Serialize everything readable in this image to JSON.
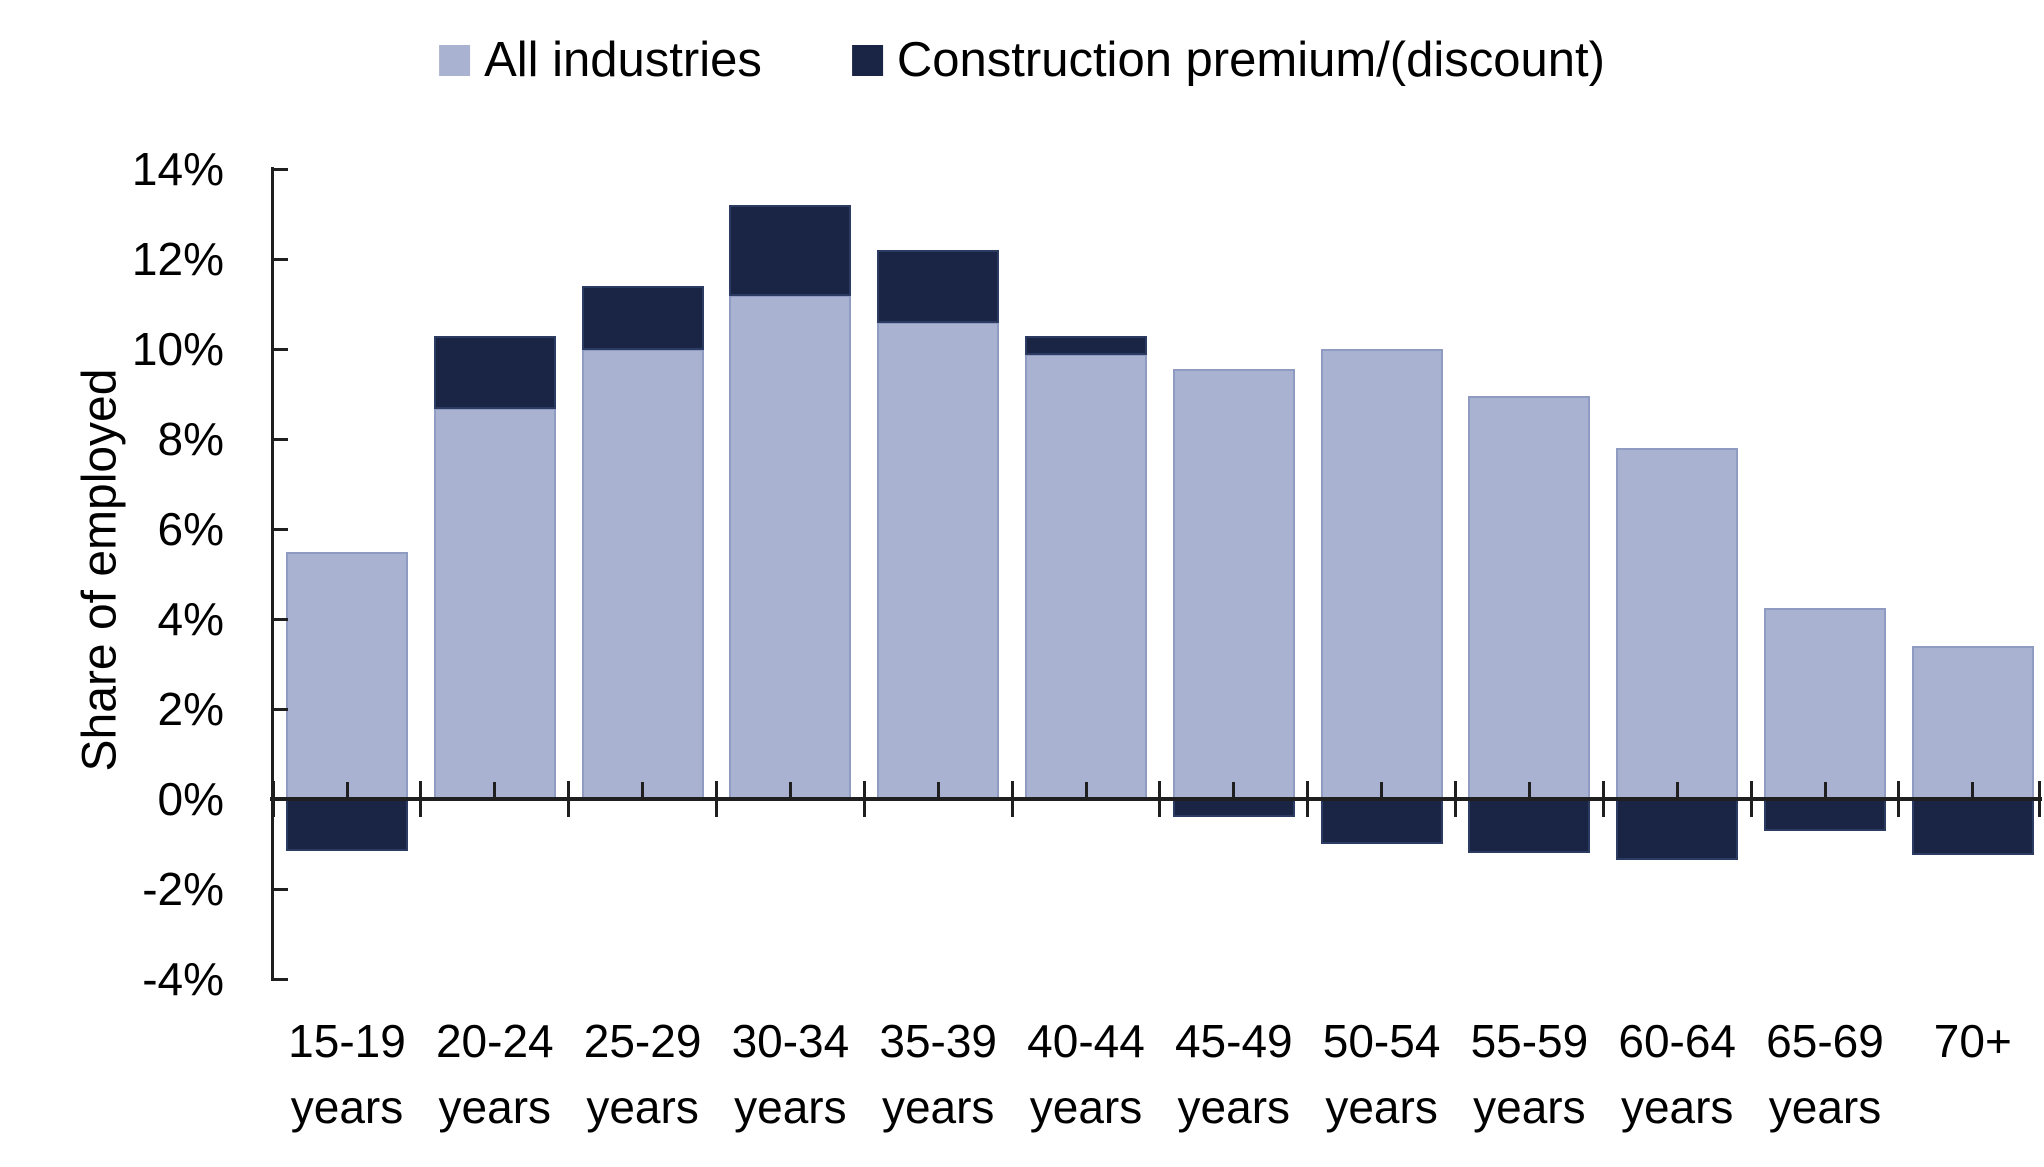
{
  "chart_data": {
    "type": "bar",
    "stacked": true,
    "ylabel": "Share of employed",
    "xlabel": "",
    "ylim": [
      -4,
      14
    ],
    "ytick_step": 2,
    "grid": false,
    "legend_position": "top",
    "background": "#FFFFFF",
    "axis_color": "#1F1F1F",
    "text_color": "#000000",
    "yticks": [
      {
        "value": 14,
        "label": "14%"
      },
      {
        "value": 12,
        "label": "12%"
      },
      {
        "value": 10,
        "label": "10%"
      },
      {
        "value": 8,
        "label": "8%"
      },
      {
        "value": 6,
        "label": "6%"
      },
      {
        "value": 4,
        "label": "4%"
      },
      {
        "value": 2,
        "label": "2%"
      },
      {
        "value": 0,
        "label": "0%"
      },
      {
        "value": -2,
        "label": "-2%"
      },
      {
        "value": -4,
        "label": "-4%"
      }
    ],
    "categories": [
      "15-19 years",
      "20-24 years",
      "25-29 years",
      "30-34 years",
      "35-39 years",
      "40-44 years",
      "45-49 years",
      "50-54 years",
      "55-59 years",
      "60-64 years",
      "65-69 years",
      "70+"
    ],
    "x_tick_labels": [
      {
        "line1": "15-19",
        "line2": "years"
      },
      {
        "line1": "20-24",
        "line2": "years"
      },
      {
        "line1": "25-29",
        "line2": "years"
      },
      {
        "line1": "30-34",
        "line2": "years"
      },
      {
        "line1": "35-39",
        "line2": "years"
      },
      {
        "line1": "40-44",
        "line2": "years"
      },
      {
        "line1": "45-49",
        "line2": "years"
      },
      {
        "line1": "50-54",
        "line2": "years"
      },
      {
        "line1": "55-59",
        "line2": "years"
      },
      {
        "line1": "60-64",
        "line2": "years"
      },
      {
        "line1": "65-69",
        "line2": "years"
      },
      {
        "line1": "70+",
        "line2": ""
      }
    ],
    "series": [
      {
        "name": "All industries",
        "color": "#A9B2D0",
        "border_color": "#8F9BC1",
        "values": [
          5.5,
          8.7,
          10.0,
          11.2,
          10.6,
          9.9,
          9.55,
          10.0,
          8.95,
          7.8,
          4.25,
          3.4
        ]
      },
      {
        "name": "Construction premium/(discount)",
        "color": "#1A2545",
        "border_color": "#2C3B61",
        "values": [
          -1.15,
          1.6,
          1.4,
          2.0,
          1.6,
          0.4,
          -0.4,
          -1.0,
          -1.2,
          -1.35,
          -0.7,
          -1.25
        ]
      }
    ]
  }
}
